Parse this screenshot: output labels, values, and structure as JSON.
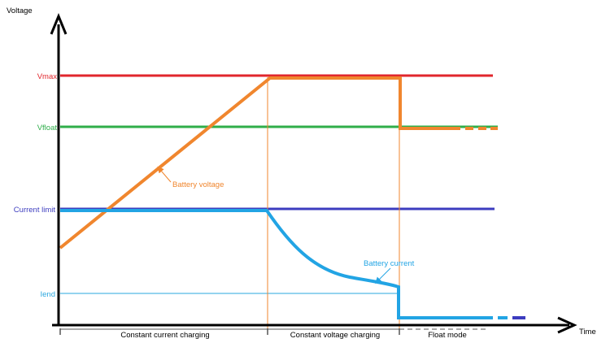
{
  "axes": {
    "y_title": "Voltage",
    "x_title": "Time"
  },
  "levels": {
    "vmax": {
      "label": "Vmax",
      "color": "#e1262c"
    },
    "vfloat": {
      "label": "Vfloat",
      "color": "#2fae4a"
    },
    "current_limit": {
      "label": "Current limit",
      "color": "#3c3cbf"
    },
    "iend": {
      "label": "Iend",
      "color": "#2aa7df"
    }
  },
  "series": {
    "battery_voltage": {
      "label": "Battery voltage",
      "color": "#f0862e"
    },
    "battery_current": {
      "label": "Battery current",
      "color": "#22a4e4"
    }
  },
  "phases": [
    {
      "label": "Constant current charging"
    },
    {
      "label": "Constant voltage charging"
    },
    {
      "label": "Float mode"
    }
  ],
  "colors": {
    "axis": "#000000",
    "divider": "#f0862e"
  }
}
